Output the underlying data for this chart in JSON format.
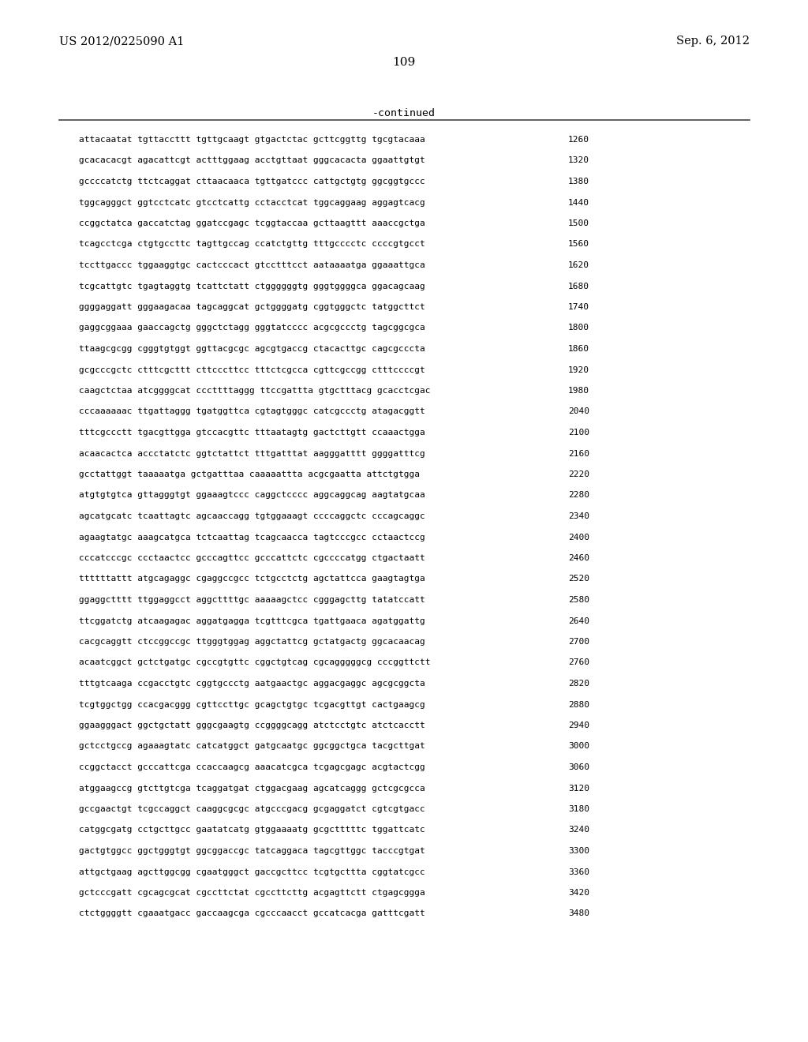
{
  "header_left": "US 2012/0225090 A1",
  "header_right": "Sep. 6, 2012",
  "page_number": "109",
  "continued_label": "-continued",
  "background_color": "#ffffff",
  "text_color": "#000000",
  "font_size_header": 10.5,
  "font_size_body": 8.0,
  "font_size_page": 11,
  "font_size_continued": 9.5,
  "sequence_lines": [
    [
      "attacaatat tgttaccttt tgttgcaagt gtgactctac gcttcggttg tgcgtacaaa",
      "1260"
    ],
    [
      "gcacacacgt agacattcgt actttggaag acctgttaat gggcacacta ggaattgtgt",
      "1320"
    ],
    [
      "gccccatctg ttctcaggat cttaacaaca tgttgatccc cattgctgtg ggcggtgccc",
      "1380"
    ],
    [
      "tggcagggct ggtcctcatc gtcctcattg cctacctcat tggcaggaag aggagtcacg",
      "1440"
    ],
    [
      "ccggctatca gaccatctag ggatccgagc tcggtaccaa gcttaagttt aaaccgctga",
      "1500"
    ],
    [
      "tcagcctcga ctgtgccttc tagttgccag ccatctgttg tttgcccctc ccccgtgcct",
      "1560"
    ],
    [
      "tccttgaccc tggaaggtgc cactcccact gtcctttcct aataaaatga ggaaattgca",
      "1620"
    ],
    [
      "tcgcattgtc tgagtaggtg tcattctatt ctggggggtg gggtggggca ggacagcaag",
      "1680"
    ],
    [
      "ggggaggatt gggaagacaa tagcaggcat gctggggatg cggtgggctc tatggcttct",
      "1740"
    ],
    [
      "gaggcggaaa gaaccagctg gggctctagg gggtatcccc acgcgccctg tagcggcgca",
      "1800"
    ],
    [
      "ttaagcgcgg cgggtgtggt ggttacgcgc agcgtgaccg ctacacttgc cagcgcccta",
      "1860"
    ],
    [
      "gcgcccgctc ctttcgcttt cttcccttcc tttctcgcca cgttcgccgg ctttccccgt",
      "1920"
    ],
    [
      "caagctctaa atcggggcat cccttttaggg ttccgattta gtgctttacg gcacctcgac",
      "1980"
    ],
    [
      "cccaaaaaac ttgattaggg tgatggttca cgtagtgggc catcgccctg atagacggtt",
      "2040"
    ],
    [
      "tttcgccctt tgacgttgga gtccacgttc tttaatagtg gactcttgtt ccaaactgga",
      "2100"
    ],
    [
      "acaacactca accctatctc ggtctattct tttgatttat aagggatttt ggggatttcg",
      "2160"
    ],
    [
      "gcctattggt taaaaatga gctgatttaa caaaaattta acgcgaatta attctgtgga",
      "2220"
    ],
    [
      "atgtgtgtca gttagggtgt ggaaagtccc caggctcccc aggcaggcag aagtatgcaa",
      "2280"
    ],
    [
      "agcatgcatc tcaattagtc agcaaccagg tgtggaaagt ccccaggctc cccagcaggc",
      "2340"
    ],
    [
      "agaagtatgc aaagcatgca tctcaattag tcagcaacca tagtcccgcc cctaactccg",
      "2400"
    ],
    [
      "cccatcccgc ccctaactcc gcccagttcc gcccattctc cgccccatgg ctgactaatt",
      "2460"
    ],
    [
      "ttttttattt atgcagaggc cgaggccgcc tctgcctctg agctattcca gaagtagtga",
      "2520"
    ],
    [
      "ggaggctttt ttggaggcct aggcttttgc aaaaagctcc cgggagcttg tatatccatt",
      "2580"
    ],
    [
      "ttcggatctg atcaagagac aggatgagga tcgtttcgca tgattgaaca agatggattg",
      "2640"
    ],
    [
      "cacgcaggtt ctccggccgc ttgggtggag aggctattcg gctatgactg ggcacaacag",
      "2700"
    ],
    [
      "acaatcggct gctctgatgc cgccgtgttc cggctgtcag cgcagggggcg cccggttctt",
      "2760"
    ],
    [
      "tttgtcaaga ccgacctgtc cggtgccctg aatgaactgc aggacgaggc agcgcggcta",
      "2820"
    ],
    [
      "tcgtggctgg ccacgacggg cgttccttgc gcagctgtgc tcgacgttgt cactgaagcg",
      "2880"
    ],
    [
      "ggaagggact ggctgctatt gggcgaagtg ccggggcagg atctcctgtc atctcacctt",
      "2940"
    ],
    [
      "gctcctgccg agaaagtatc catcatggct gatgcaatgc ggcggctgca tacgcttgat",
      "3000"
    ],
    [
      "ccggctacct gcccattcga ccaccaagcg aaacatcgca tcgagcgagc acgtactcgg",
      "3060"
    ],
    [
      "atggaagccg gtcttgtcga tcaggatgat ctggacgaag agcatcaggg gctcgcgcca",
      "3120"
    ],
    [
      "gccgaactgt tcgccaggct caaggcgcgc atgcccgacg gcgaggatct cgtcgtgacc",
      "3180"
    ],
    [
      "catggcgatg cctgcttgcc gaatatcatg gtggaaaatg gcgctttttc tggattcatc",
      "3240"
    ],
    [
      "gactgtggcc ggctgggtgt ggcggaccgc tatcaggaca tagcgttggc tacccgtgat",
      "3300"
    ],
    [
      "attgctgaag agcttggcgg cgaatgggct gaccgcttcc tcgtgcttta cggtatcgcc",
      "3360"
    ],
    [
      "gctcccgatt cgcagcgcat cgccttctat cgccttcttg acgagttctt ctgagcggga",
      "3420"
    ],
    [
      "ctctggggtt cgaaatgacc gaccaagcga cgcccaacct gccatcacga gatttcgatt",
      "3480"
    ]
  ]
}
